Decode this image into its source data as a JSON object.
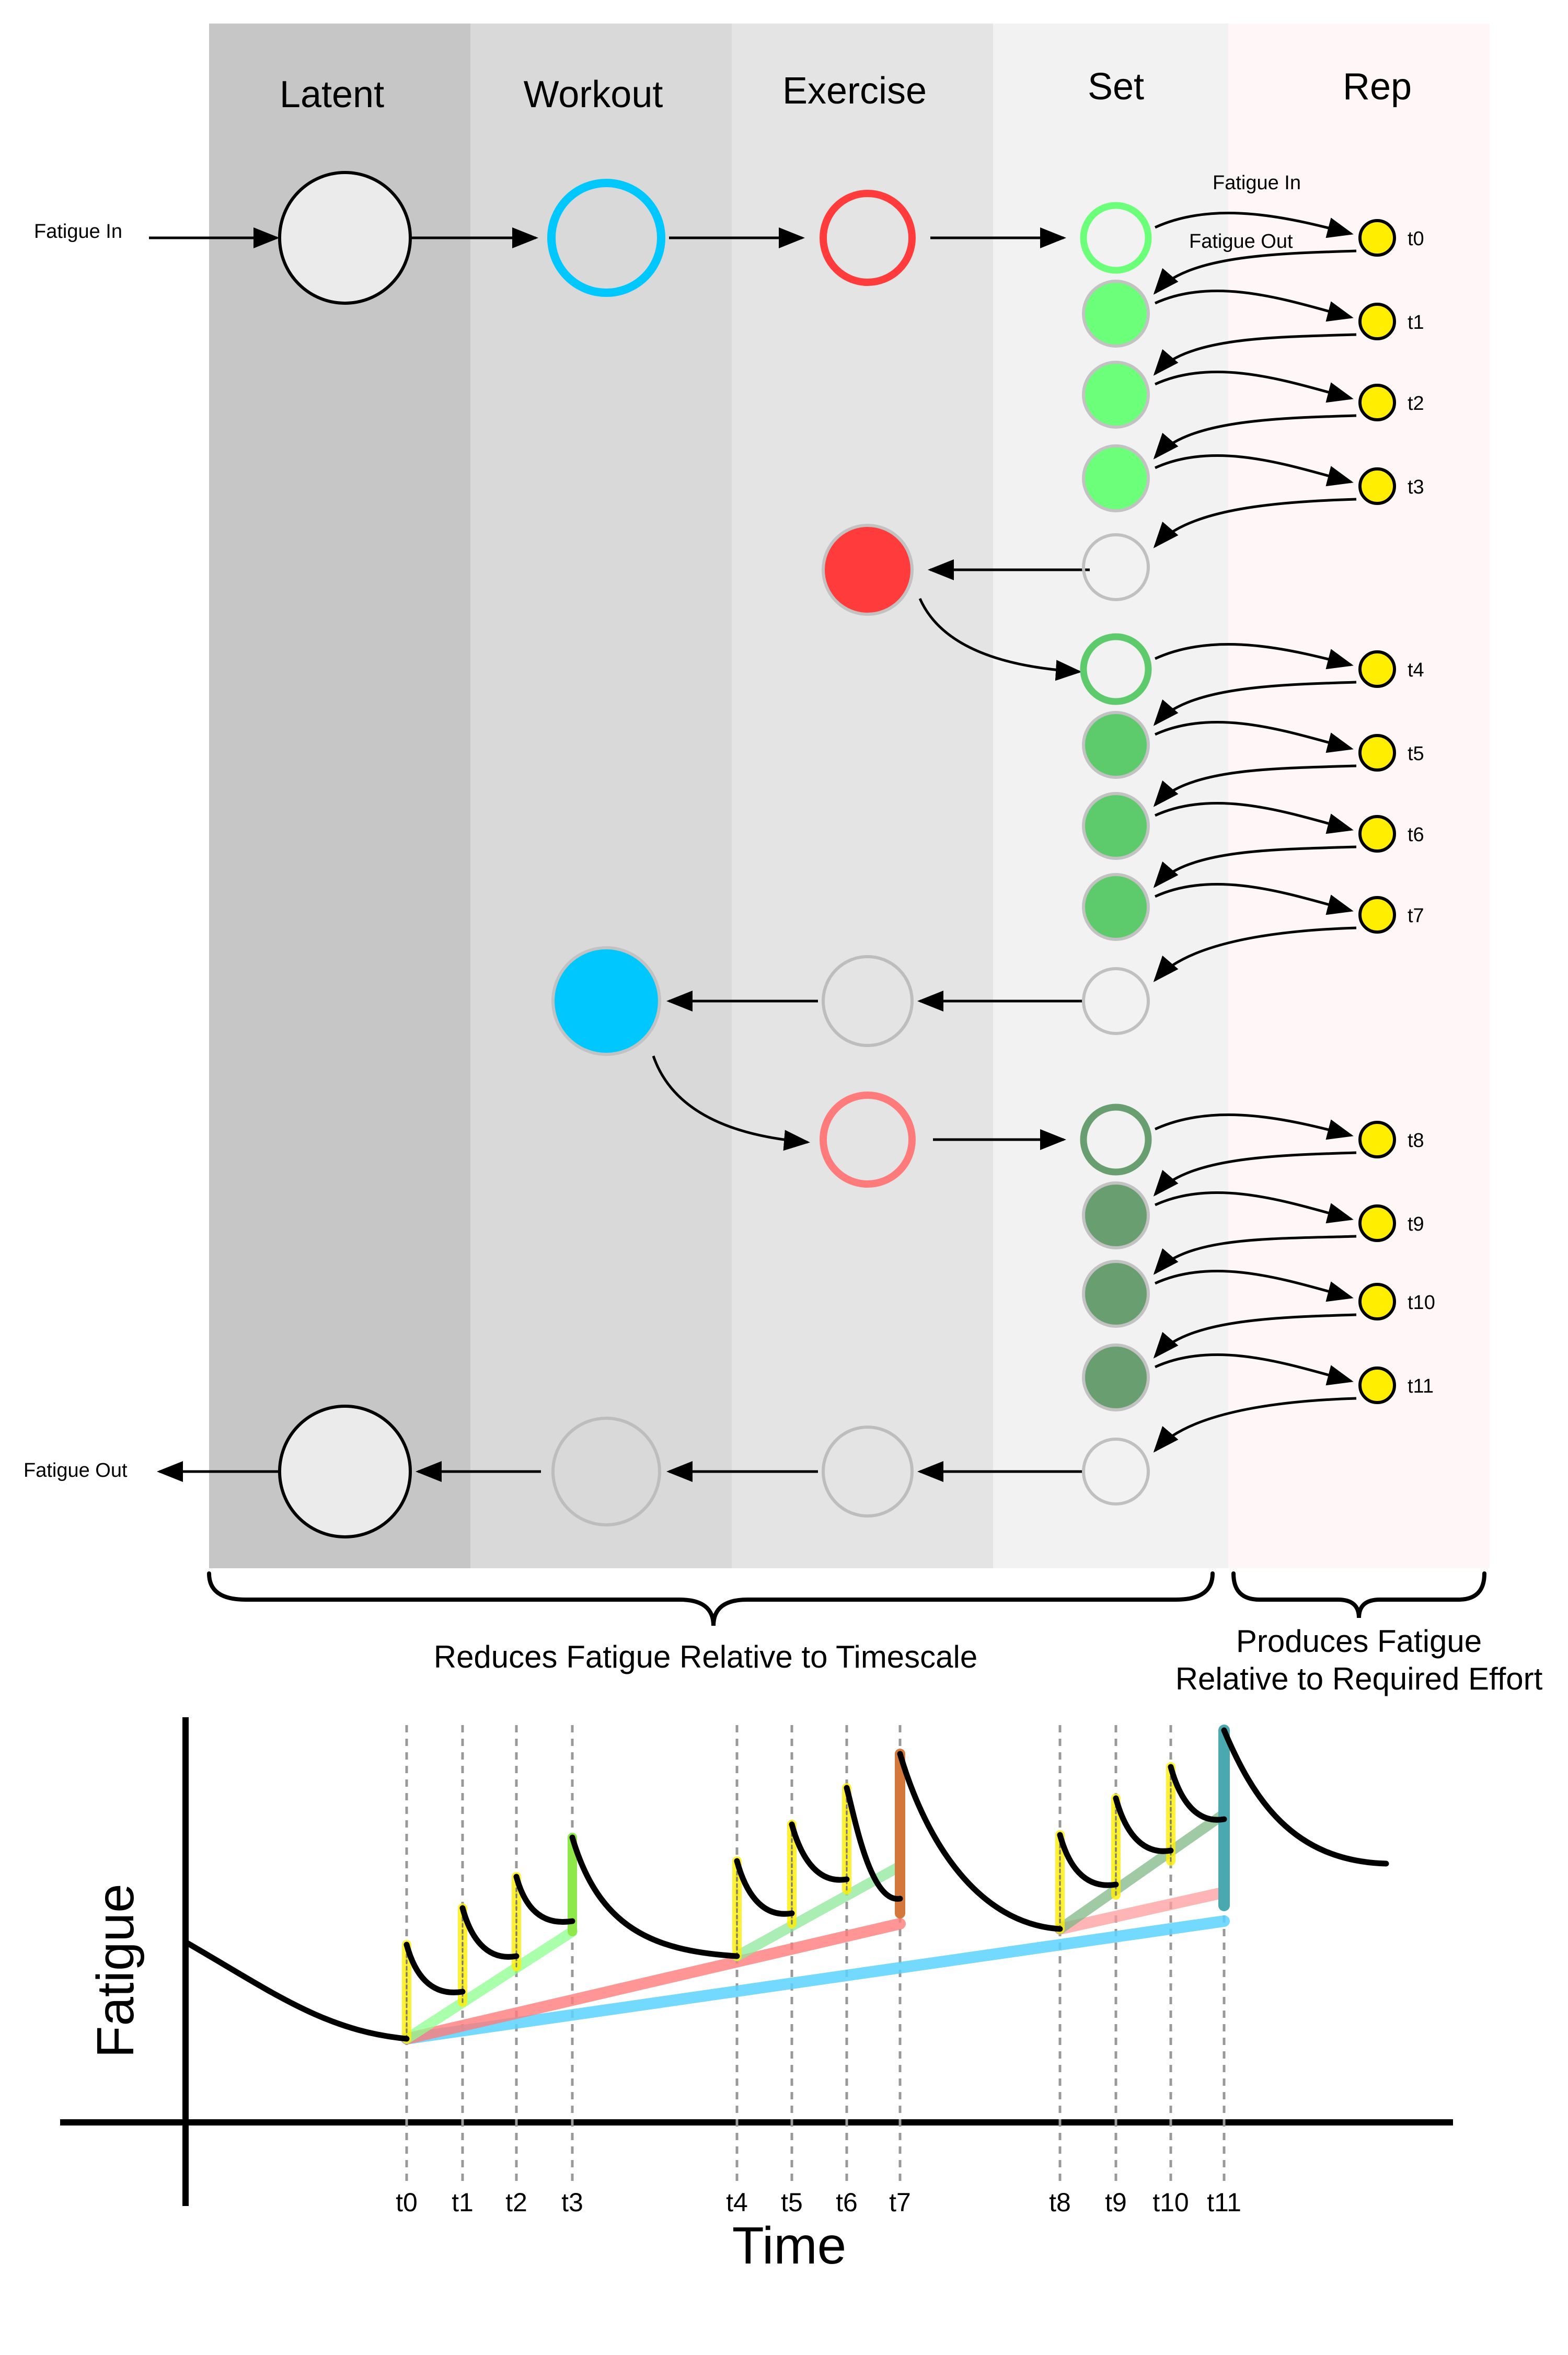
{
  "columns": {
    "latent": "Latent",
    "workout": "Workout",
    "exercise": "Exercise",
    "set": "Set",
    "rep": "Rep"
  },
  "io_labels": {
    "fatigue_in": "Fatigue In",
    "fatigue_out": "Fatigue Out",
    "rep_fatigue_in": "Fatigue In",
    "rep_fatigue_out": "Fatigue Out"
  },
  "rep_labels": [
    "t0",
    "t1",
    "t2",
    "t3",
    "t4",
    "t5",
    "t6",
    "t7",
    "t8",
    "t9",
    "t10",
    "t11"
  ],
  "braces": {
    "left_caption": "Reduces Fatigue Relative to Timescale",
    "right_caption_line1": "Produces Fatigue",
    "right_caption_line2": "Relative to Required Effort"
  },
  "plot": {
    "ylabel": "Fatigue",
    "xlabel": "Time",
    "ticks": [
      "t0",
      "t1",
      "t2",
      "t3",
      "t4",
      "t5",
      "t6",
      "t7",
      "t8",
      "t9",
      "t10",
      "t11"
    ]
  },
  "colors": {
    "latent_band": "#c6c6c6",
    "workout_band": "#d9d9d9",
    "exercise_band": "#e4e4e4",
    "set_band": "#f2f2f2",
    "rep_band": "#fff7f7",
    "workout": "#00c8ff",
    "exercise_1": "#ff3b3b",
    "exercise_2": "#ff7b7b",
    "set_1": "#6cff7a",
    "set_2": "#5dcb6b",
    "set_3": "#699f70",
    "rep": "#ffee00"
  }
}
